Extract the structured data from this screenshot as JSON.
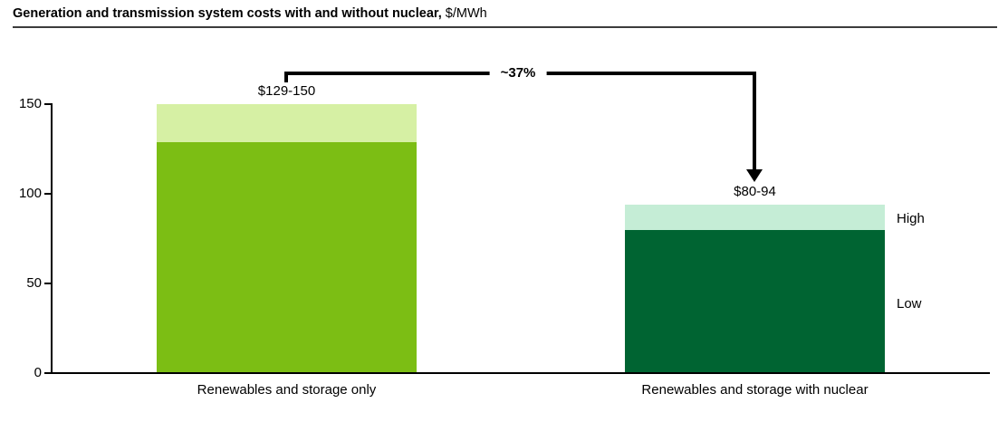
{
  "header": {
    "title": "Generation and transmission system costs with and without nuclear,",
    "unit": "$/MWh"
  },
  "chart_data": {
    "type": "bar",
    "title": "Generation and transmission system costs with and without nuclear",
    "unit": "$/MWh",
    "ylim": [
      0,
      150
    ],
    "yticks": [
      0,
      50,
      100,
      150
    ],
    "grid": false,
    "axis_color": "#000000",
    "categories": [
      "Renewables and storage only",
      "Renewables and storage with nuclear"
    ],
    "bars": [
      {
        "category": "Renewables and storage only",
        "low": 129,
        "high": 150,
        "range_label": "$129-150",
        "color_low": "#7CBE14",
        "color_high": "#D6F0A4"
      },
      {
        "category": "Renewables and storage with nuclear",
        "low": 80,
        "high": 94,
        "range_label": "$80-94",
        "color_low": "#006432",
        "color_high": "#C5EDD6"
      }
    ],
    "segment_legend": {
      "high": "High",
      "low": "Low"
    },
    "annotation": {
      "text": "~37%"
    }
  }
}
